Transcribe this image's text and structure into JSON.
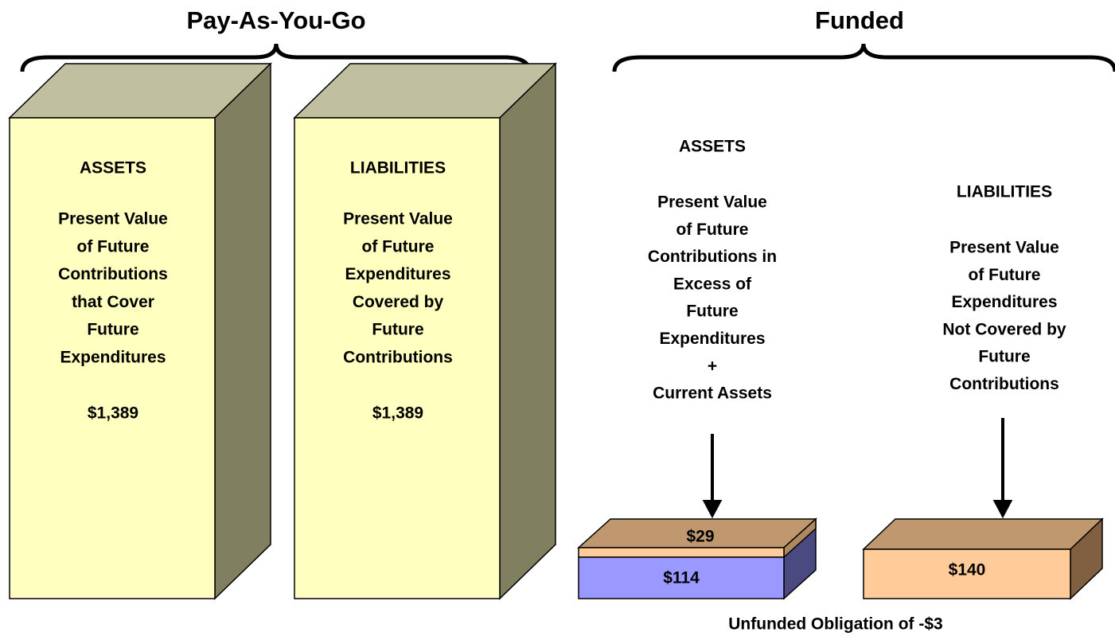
{
  "payg": {
    "title": "Pay-As-You-Go",
    "assets": {
      "heading": "ASSETS",
      "lines": [
        "Present Value",
        "of Future",
        "Contributions",
        "that Cover",
        "Future",
        "Expenditures"
      ],
      "amount": "$1,389"
    },
    "liabilities": {
      "heading": "LIABILITIES",
      "lines": [
        "Present Value",
        "of Future",
        "Expenditures",
        "Covered by",
        "Future",
        "Contributions"
      ],
      "amount": "$1,389"
    }
  },
  "funded": {
    "title": "Funded",
    "assets": {
      "heading": "ASSETS",
      "lines": [
        "Present Value",
        "of Future",
        "Contributions in",
        "Excess of",
        "Future",
        "Expenditures",
        "+",
        "Current Assets"
      ],
      "amounts": [
        "$29",
        "$114"
      ]
    },
    "liabilities": {
      "heading": "LIABILITIES",
      "lines": [
        "Present Value",
        "of Future",
        "Expenditures",
        "Not Covered by",
        "Future",
        "Contributions"
      ],
      "amount": "$140"
    },
    "note": "Unfunded Obligation of -$3"
  }
}
